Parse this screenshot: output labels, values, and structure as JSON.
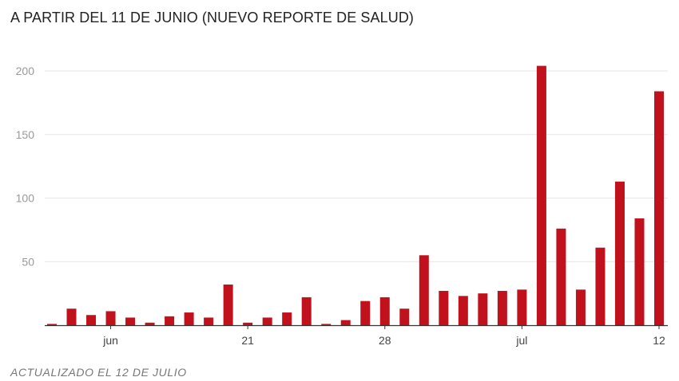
{
  "header": {
    "title": "A PARTIR DEL 11 DE JUNIO (NUEVO REPORTE DE SALUD)"
  },
  "footer": {
    "note": "ACTUALIZADO EL 12 DE JULIO"
  },
  "colors": {
    "bar": "#c0111c",
    "grid": "#e6e6e6",
    "axis": "#333333"
  },
  "chart_data": {
    "type": "bar",
    "categories": [
      "11 jun",
      "12 jun",
      "13 jun",
      "14 jun",
      "15 jun",
      "16 jun",
      "17 jun",
      "18 jun",
      "19 jun",
      "20 jun",
      "21 jun",
      "22 jun",
      "23 jun",
      "24 jun",
      "25 jun",
      "26 jun",
      "27 jun",
      "28 jun",
      "29 jun",
      "30 jun",
      "1 jul",
      "2 jul",
      "3 jul",
      "4 jul",
      "5 jul",
      "6 jul",
      "7 jul",
      "8 jul",
      "9 jul",
      "10 jul",
      "11 jul",
      "12 jul"
    ],
    "values": [
      1,
      13,
      8,
      11,
      6,
      2,
      7,
      10,
      6,
      32,
      2,
      6,
      10,
      22,
      1,
      4,
      19,
      22,
      13,
      55,
      27,
      23,
      25,
      27,
      28,
      204,
      76,
      28,
      61,
      113,
      84,
      184
    ],
    "xticks": [
      {
        "label": "jun",
        "index": 3
      },
      {
        "label": "21",
        "index": 10
      },
      {
        "label": "28",
        "index": 17
      },
      {
        "label": "jul",
        "index": 24
      },
      {
        "label": "12",
        "index": 31
      }
    ],
    "yticks": [
      "50",
      "100",
      "150",
      "200"
    ],
    "ylim": [
      0,
      210
    ],
    "xlabel": "",
    "ylabel": "",
    "grid": true,
    "legend": "none"
  }
}
